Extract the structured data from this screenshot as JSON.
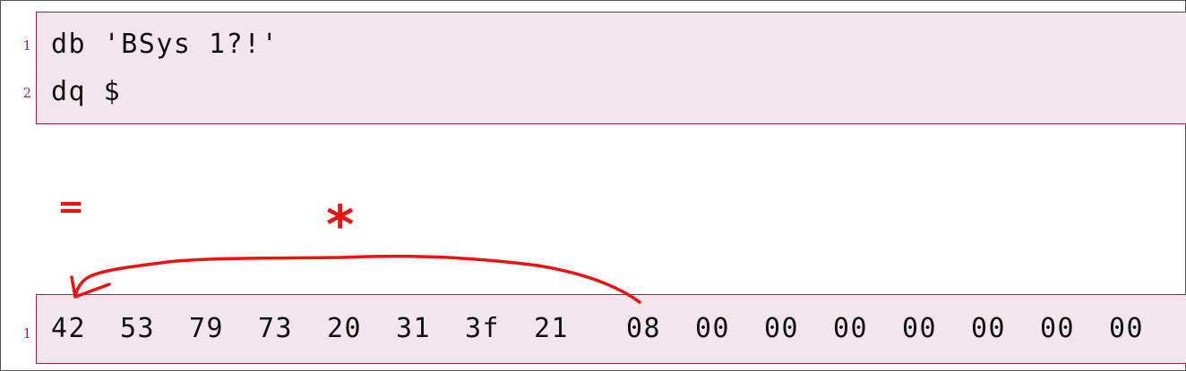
{
  "source_listing": {
    "lines": [
      {
        "number": "1",
        "text": "db 'BSys 1?!'"
      },
      {
        "number": "2",
        "text": "dq $"
      }
    ]
  },
  "hex_listing": {
    "line_number": "1",
    "bytes": [
      "42",
      "53",
      "79",
      "73",
      "20",
      "31",
      "3f",
      "21",
      "08",
      "00",
      "00",
      "00",
      "00",
      "00",
      "00",
      "00"
    ]
  },
  "annotations": {
    "equals_mark": "=",
    "asterisk_mark": "*",
    "ink_color": "#ee1111"
  }
}
